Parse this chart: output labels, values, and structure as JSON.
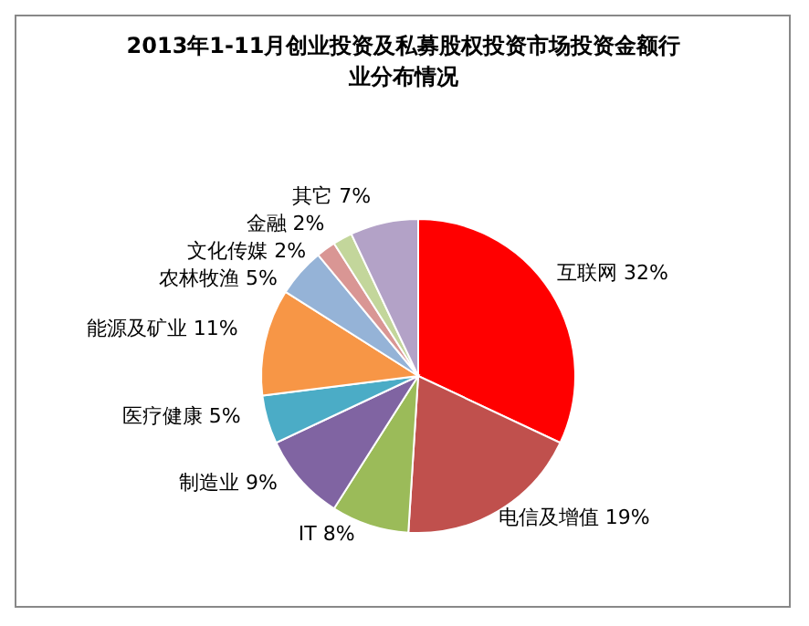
{
  "chart_data": {
    "type": "pie",
    "title": "2013年1-11月创业投资及私募股权投资市场投资金额行业分布情况",
    "categories": [
      "互联网",
      "电信及增值",
      "IT",
      "制造业",
      "医疗健康",
      "能源及矿业",
      "农林牧渔",
      "文化传媒",
      "金融",
      "其它"
    ],
    "values": [
      32,
      19,
      8,
      9,
      5,
      11,
      5,
      2,
      2,
      7
    ],
    "value_labels": [
      "32%",
      "19%",
      "8%",
      "9%",
      "5%",
      "11%",
      "5%",
      "2%",
      "2%",
      "7%"
    ],
    "colors": [
      "#ff0000",
      "#c0504d",
      "#9bbb59",
      "#8064a2",
      "#4bacc6",
      "#f79646",
      "#95b3d7",
      "#d99694",
      "#c3d69b",
      "#b3a2c7"
    ]
  }
}
